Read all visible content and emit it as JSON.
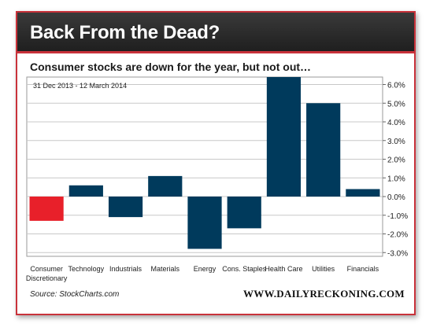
{
  "header": {
    "title": "Back From the Dead?",
    "subtitle": "Consumer stocks are down for the year, but not out…"
  },
  "footer": {
    "source": "Source: StockCharts.com",
    "brand": "WWW.DAILYRECKONING.COM"
  },
  "colors": {
    "frame_border": "#c8323a",
    "header_bg": "#2a2a2a",
    "bar_positive": "#003a5c",
    "bar_highlight": "#e8202a",
    "grid": "#c8c8c8"
  },
  "chart_data": {
    "type": "bar",
    "annotation": "31 Dec 2013 - 12 March 2014",
    "categories": [
      [
        "Consumer",
        "Discretionary"
      ],
      [
        "Technology"
      ],
      [
        "Industrials"
      ],
      [
        "Materials"
      ],
      [
        "Energy"
      ],
      [
        "Cons. Staples"
      ],
      [
        "Health Care"
      ],
      [
        "Utilities"
      ],
      [
        "Financials"
      ]
    ],
    "values": [
      -1.3,
      0.6,
      -1.1,
      1.1,
      -2.8,
      -1.7,
      6.4,
      5.0,
      0.4
    ],
    "highlight_index": 0,
    "y_ticks": [
      "-3.0%",
      "-2.0%",
      "-1.0%",
      "0.0%",
      "1.0%",
      "2.0%",
      "3.0%",
      "4.0%",
      "5.0%",
      "6.0%"
    ],
    "y_tick_values": [
      -3,
      -2,
      -1,
      0,
      1,
      2,
      3,
      4,
      5,
      6
    ],
    "ylim": [
      -3.2,
      6.4
    ],
    "grid": true,
    "y_axis_side": "right"
  }
}
